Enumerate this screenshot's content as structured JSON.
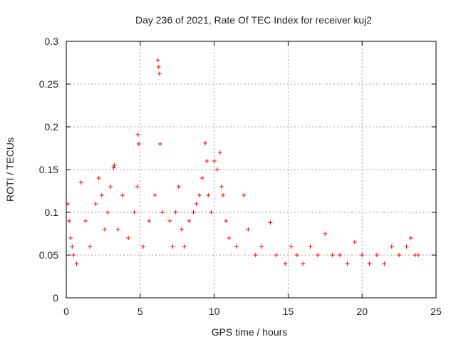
{
  "chart_data": {
    "type": "scatter",
    "title": "Day 236 of 2021, Rate Of TEC Index for receiver kuj2",
    "xlabel": "GPS time / hours",
    "ylabel": "ROTI / TECUs",
    "xlim": [
      0,
      25
    ],
    "ylim": [
      0,
      0.3
    ],
    "xticks": [
      0,
      5,
      10,
      15,
      20,
      25
    ],
    "yticks": [
      0,
      0.05,
      0.1,
      0.15,
      0.2,
      0.25,
      0.3
    ],
    "xtick_labels": [
      "0",
      "5",
      "10",
      "15",
      "20",
      "25"
    ],
    "ytick_labels": [
      "0",
      "0.05",
      "0.1",
      "0.15",
      "0.2",
      "0.25",
      "0.3"
    ],
    "grid": true,
    "marker": "+",
    "color": "#ff0000",
    "series": [
      {
        "name": "ROTI",
        "x": [
          0.1,
          0.2,
          0.3,
          0.4,
          0.5,
          0.7,
          1.0,
          1.3,
          1.6,
          2.0,
          2.2,
          2.4,
          2.6,
          2.8,
          3.0,
          3.2,
          3.25,
          3.5,
          3.8,
          4.2,
          4.6,
          4.8,
          4.85,
          4.9,
          5.2,
          5.6,
          6.0,
          6.2,
          6.25,
          6.3,
          6.35,
          6.5,
          7.0,
          7.2,
          7.4,
          7.6,
          7.8,
          8.0,
          8.3,
          8.6,
          8.8,
          9.0,
          9.2,
          9.4,
          9.5,
          9.6,
          9.8,
          10.0,
          10.2,
          10.4,
          10.5,
          10.6,
          10.8,
          11.0,
          11.5,
          12.0,
          12.3,
          12.8,
          13.2,
          13.8,
          14.2,
          14.8,
          15.2,
          15.6,
          16.0,
          16.5,
          17.0,
          17.5,
          18.0,
          18.5,
          19.0,
          19.5,
          20.0,
          20.5,
          21.0,
          21.5,
          22.0,
          22.5,
          23.0,
          23.3,
          23.6,
          23.8
        ],
        "y": [
          0.11,
          0.09,
          0.07,
          0.06,
          0.05,
          0.04,
          0.135,
          0.09,
          0.06,
          0.11,
          0.14,
          0.12,
          0.08,
          0.1,
          0.13,
          0.152,
          0.155,
          0.08,
          0.12,
          0.07,
          0.1,
          0.13,
          0.191,
          0.18,
          0.06,
          0.09,
          0.12,
          0.278,
          0.27,
          0.262,
          0.18,
          0.1,
          0.09,
          0.06,
          0.1,
          0.13,
          0.08,
          0.06,
          0.09,
          0.1,
          0.11,
          0.12,
          0.14,
          0.181,
          0.16,
          0.12,
          0.1,
          0.16,
          0.15,
          0.17,
          0.13,
          0.12,
          0.09,
          0.07,
          0.06,
          0.12,
          0.08,
          0.05,
          0.06,
          0.088,
          0.05,
          0.04,
          0.06,
          0.05,
          0.04,
          0.06,
          0.05,
          0.075,
          0.05,
          0.05,
          0.04,
          0.065,
          0.05,
          0.04,
          0.05,
          0.04,
          0.06,
          0.05,
          0.06,
          0.07,
          0.05,
          0.05
        ]
      }
    ]
  }
}
